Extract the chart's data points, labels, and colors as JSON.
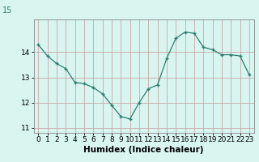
{
  "x": [
    0,
    1,
    2,
    3,
    4,
    5,
    6,
    7,
    8,
    9,
    10,
    11,
    12,
    13,
    14,
    15,
    16,
    17,
    18,
    19,
    20,
    21,
    22,
    23
  ],
  "y": [
    14.3,
    13.85,
    13.55,
    13.35,
    12.8,
    12.75,
    12.6,
    12.35,
    11.9,
    11.45,
    11.35,
    12.0,
    12.55,
    12.7,
    13.75,
    14.55,
    14.8,
    14.75,
    14.2,
    14.1,
    13.9,
    13.9,
    13.85,
    13.1
  ],
  "line_color": "#2e7d6e",
  "marker": "+",
  "marker_size": 3,
  "bg_color": "#d8f5f0",
  "grid_color": "#c8a8a8",
  "xlabel": "Humidex (Indice chaleur)",
  "ylim": [
    10.8,
    15.3
  ],
  "xlim": [
    -0.5,
    23.5
  ],
  "yticks": [
    11,
    12,
    13,
    14
  ],
  "xticks": [
    0,
    1,
    2,
    3,
    4,
    5,
    6,
    7,
    8,
    9,
    10,
    11,
    12,
    13,
    14,
    15,
    16,
    17,
    18,
    19,
    20,
    21,
    22,
    23
  ],
  "top_label": "15",
  "label_color": "#2e7d6e",
  "axis_color": "#888888",
  "tick_label_fontsize": 6.5,
  "xlabel_fontsize": 7.5,
  "label_fontsize": 7
}
